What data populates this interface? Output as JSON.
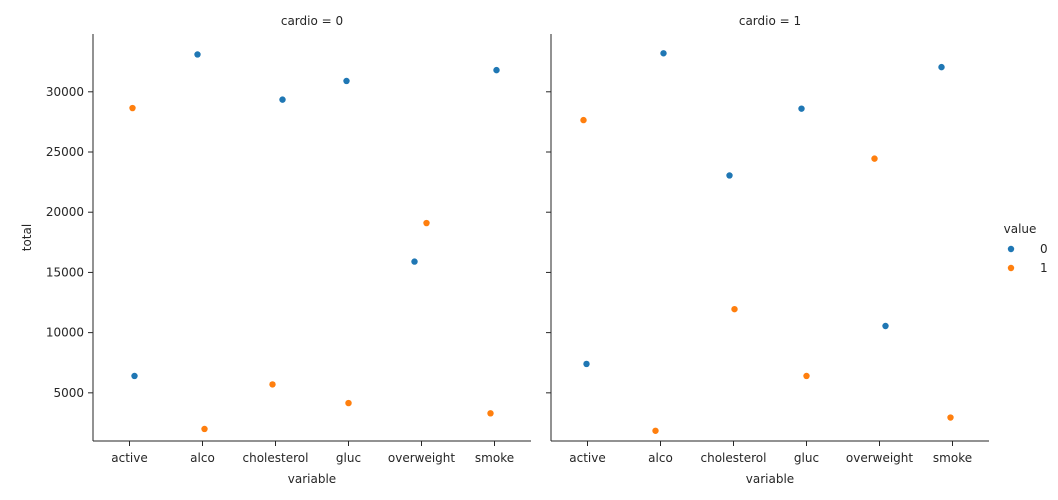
{
  "chart_data": {
    "type": "scatter",
    "xlabel": "variable",
    "ylabel": "total",
    "categories": [
      "active",
      "alco",
      "cholesterol",
      "gluc",
      "overweight",
      "smoke"
    ],
    "y_ticks": [
      5000,
      10000,
      15000,
      20000,
      25000,
      30000
    ],
    "ylim": [
      1000,
      34800
    ],
    "grid": false,
    "legend": {
      "title": "value",
      "placement": "right",
      "entries": [
        {
          "label": "0",
          "color": "#1f77b4"
        },
        {
          "label": "1",
          "color": "#ff7f0e"
        }
      ]
    },
    "facets": [
      {
        "title": "cardio = 0",
        "series": [
          {
            "value": "0",
            "color": "#1f77b4",
            "values": [
              6400,
              33100,
              29350,
              30900,
              15900,
              31800
            ]
          },
          {
            "value": "1",
            "color": "#ff7f0e",
            "values": [
              28650,
              2000,
              5700,
              4150,
              19100,
              3300
            ]
          }
        ]
      },
      {
        "title": "cardio = 1",
        "series": [
          {
            "value": "0",
            "color": "#1f77b4",
            "values": [
              7400,
              33200,
              23050,
              28600,
              10550,
              32050
            ]
          },
          {
            "value": "1",
            "color": "#ff7f0e",
            "values": [
              27650,
              1850,
              11950,
              6400,
              24450,
              2950
            ]
          }
        ]
      }
    ]
  }
}
